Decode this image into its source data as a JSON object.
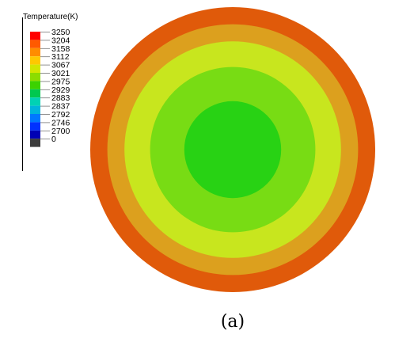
{
  "chart_data": {
    "type": "heatmap",
    "subtype": "radial-contour",
    "caption": "(a)",
    "legend": {
      "title": "Temperature(K)",
      "placement": "top-left",
      "levels": [
        {
          "label": "3250",
          "color": "#ff0000"
        },
        {
          "label": "3204",
          "color": "#ff5a00"
        },
        {
          "label": "3158",
          "color": "#ff8c00"
        },
        {
          "label": "3112",
          "color": "#ffc800"
        },
        {
          "label": "3067",
          "color": "#d2e600"
        },
        {
          "label": "3021",
          "color": "#8cdc00"
        },
        {
          "label": "2975",
          "color": "#3cd200"
        },
        {
          "label": "2929",
          "color": "#00c850"
        },
        {
          "label": "2883",
          "color": "#00d2b4"
        },
        {
          "label": "2837",
          "color": "#00b4dc"
        },
        {
          "label": "2792",
          "color": "#0078ff"
        },
        {
          "label": "2746",
          "color": "#0032ff"
        },
        {
          "label": "2700",
          "color": "#0000b4"
        },
        {
          "label": "0",
          "color": "#3c3c3c"
        }
      ]
    },
    "contour_bands": [
      {
        "from_center_fraction": 0.0,
        "to_center_fraction": 0.34,
        "color": "#28d214"
      },
      {
        "from_center_fraction": 0.34,
        "to_center_fraction": 0.58,
        "color": "#78dc14"
      },
      {
        "from_center_fraction": 0.58,
        "to_center_fraction": 0.76,
        "color": "#c8e61e"
      },
      {
        "from_center_fraction": 0.76,
        "to_center_fraction": 0.88,
        "color": "#dca01e"
      },
      {
        "from_center_fraction": 0.88,
        "to_center_fraction": 1.0,
        "color": "#e05a0a"
      }
    ]
  }
}
